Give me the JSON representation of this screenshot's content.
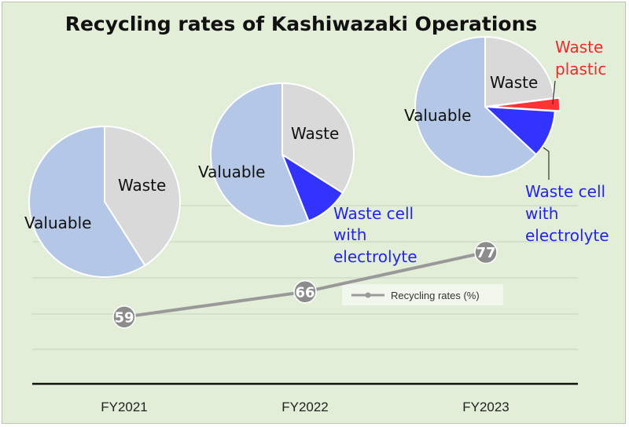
{
  "chart_data": {
    "title": "Recycling rates of Kashiwazaki Operations",
    "type": "line",
    "categories": [
      "FY2021",
      "FY2022",
      "FY2023"
    ],
    "series": [
      {
        "name": "Recycling rates (%)",
        "values": [
          59,
          66,
          77
        ],
        "color": "#999999"
      }
    ],
    "ylim": [
      50,
      90
    ],
    "grid": true,
    "legend": "center-right",
    "pies": [
      {
        "category": "FY2021",
        "slices": [
          {
            "label": "Waste",
            "value": 41,
            "color": "#d9d9d9"
          },
          {
            "label": "Valuable",
            "value": 59,
            "color": "#b4c7e7"
          }
        ]
      },
      {
        "category": "FY2022",
        "slices": [
          {
            "label": "Waste",
            "value": 34,
            "color": "#d9d9d9"
          },
          {
            "label": "Waste cell with electrolyte",
            "value": 10,
            "color": "#3333ff"
          },
          {
            "label": "Valuable",
            "value": 56,
            "color": "#b4c7e7"
          }
        ]
      },
      {
        "category": "FY2023",
        "slices": [
          {
            "label": "Waste",
            "value": 23,
            "color": "#d9d9d9"
          },
          {
            "label": "Waste plastic",
            "value": 3,
            "color": "#ff3333"
          },
          {
            "label": "Waste cell with electrolyte",
            "value": 11,
            "color": "#3333ff"
          },
          {
            "label": "Valuable",
            "value": 63,
            "color": "#b4c7e7"
          }
        ]
      }
    ]
  },
  "labels": {
    "valuable": "Valuable",
    "waste": "Waste",
    "cell_line1": "Waste cell",
    "cell_line2": "with",
    "cell_line3": "electrolyte",
    "plastic_line1": "Waste",
    "plastic_line2": "plastic"
  }
}
